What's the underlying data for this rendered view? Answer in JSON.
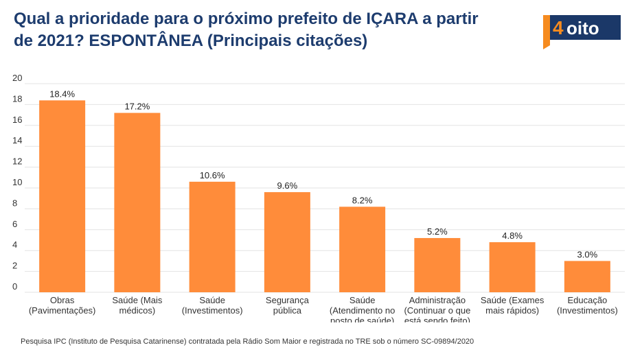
{
  "title": "Qual a prioridade para o próximo prefeito de IÇARA a partir de 2021? ESPONTÂNEA (Principais citações)",
  "logo": {
    "text": "4oito",
    "digit": "4",
    "word": "oito"
  },
  "note": "Pesquisa IPC (Instituto de Pesquisa Catarinense) contratada pela Rádio Som Maior e registrada no TRE sob o número SC-09894/2020",
  "colors": {
    "bar": "#ff8c3a",
    "title": "#1d3c6e",
    "grid": "#e3e3e3",
    "logo_dark": "#1b3868",
    "logo_orange": "#f68b1f"
  },
  "chart_data": {
    "type": "bar",
    "categories": [
      [
        "Obras",
        "(Pavimentações)"
      ],
      [
        "Saúde (Mais",
        "médicos)"
      ],
      [
        "Saúde",
        "(Investimentos)"
      ],
      [
        "Segurança",
        "pública"
      ],
      [
        "Saúde",
        "(Atendimento no",
        "posto de saúde)"
      ],
      [
        "Administração",
        "(Continuar o que",
        "está sendo feito)"
      ],
      [
        "Saúde (Exames",
        "mais rápidos)"
      ],
      [
        "Educação",
        "(Investimentos)"
      ]
    ],
    "values": [
      18.4,
      17.2,
      10.6,
      9.6,
      8.2,
      5.2,
      4.8,
      3.0
    ],
    "labels": [
      "18.4%",
      "17.2%",
      "10.6%",
      "9.6%",
      "8.2%",
      "5.2%",
      "4.8%",
      "3.0%"
    ],
    "ylim": [
      0,
      20
    ],
    "yticks": [
      "0",
      "2",
      "4",
      "6",
      "8",
      "10",
      "12",
      "14",
      "16",
      "18",
      "20"
    ],
    "grid": true,
    "legend": "none"
  }
}
